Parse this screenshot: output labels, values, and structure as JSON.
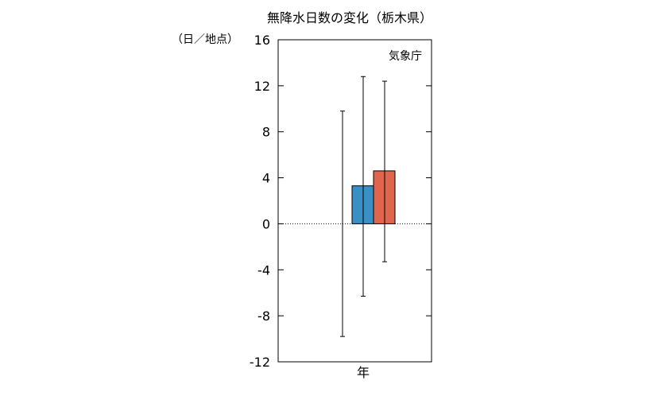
{
  "chart_data": {
    "type": "bar",
    "title": "無降水日数の変化（栃木県）",
    "ylabel": "（日／地点）",
    "source": "気象庁",
    "categories": [
      "年"
    ],
    "ylim": [
      -12,
      16
    ],
    "yticks": [
      16,
      12,
      8,
      4,
      0,
      -4,
      -8,
      -12
    ],
    "grid": false,
    "zero_line": true,
    "error_bars": [
      {
        "center": 0.0,
        "low": -9.8,
        "high": 9.8
      },
      {
        "center": 3.3,
        "low": -6.3,
        "high": 12.8
      },
      {
        "center": 4.6,
        "low": -3.3,
        "high": 12.4
      }
    ],
    "series": [
      {
        "values": [
          3.3
        ],
        "color": "#3a8fc4"
      },
      {
        "values": [
          4.6
        ],
        "color": "#e0654d"
      }
    ]
  }
}
